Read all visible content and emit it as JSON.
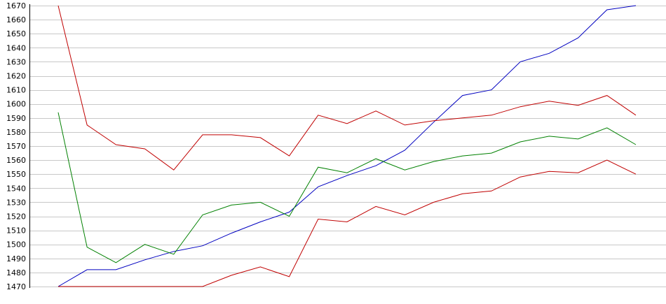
{
  "chart_data": {
    "type": "line",
    "title": "",
    "xlabel": "",
    "ylabel": "",
    "ylim": [
      1470,
      1670
    ],
    "yticks": [
      1470,
      1480,
      1490,
      1500,
      1510,
      1520,
      1530,
      1540,
      1550,
      1560,
      1570,
      1580,
      1590,
      1600,
      1610,
      1620,
      1630,
      1640,
      1650,
      1660,
      1670
    ],
    "grid": true,
    "x": [
      1,
      2,
      3,
      4,
      5,
      6,
      7,
      8,
      9,
      10,
      11,
      12,
      13,
      14,
      15,
      16,
      17,
      18,
      19,
      20,
      21
    ],
    "series": [
      {
        "color": "#0000c0",
        "values": [
          1470,
          1482,
          1482,
          1489,
          1495,
          1499,
          1508,
          1516,
          1523,
          1541,
          1549,
          1556,
          1567,
          1587,
          1606,
          1610,
          1630,
          1636,
          1647,
          1667,
          1670
        ]
      },
      {
        "color": "#c00000",
        "values": [
          1670,
          1585,
          1571,
          1568,
          1553,
          1578,
          1578,
          1576,
          1563,
          1592,
          1586,
          1595,
          1585,
          1588,
          1590,
          1592,
          1598,
          1602,
          1599,
          1606,
          1592
        ]
      },
      {
        "color": "#008000",
        "values": [
          1594,
          1498,
          1487,
          1500,
          1493,
          1521,
          1528,
          1530,
          1520,
          1555,
          1551,
          1561,
          1553,
          1559,
          1563,
          1565,
          1573,
          1577,
          1575,
          1583,
          1571
        ]
      },
      {
        "color": "#c00000",
        "values": [
          1470,
          1470,
          1470,
          1470,
          1470,
          1470,
          1478,
          1484,
          1477,
          1518,
          1516,
          1527,
          1521,
          1530,
          1536,
          1538,
          1548,
          1552,
          1551,
          1560,
          1550
        ]
      }
    ]
  }
}
